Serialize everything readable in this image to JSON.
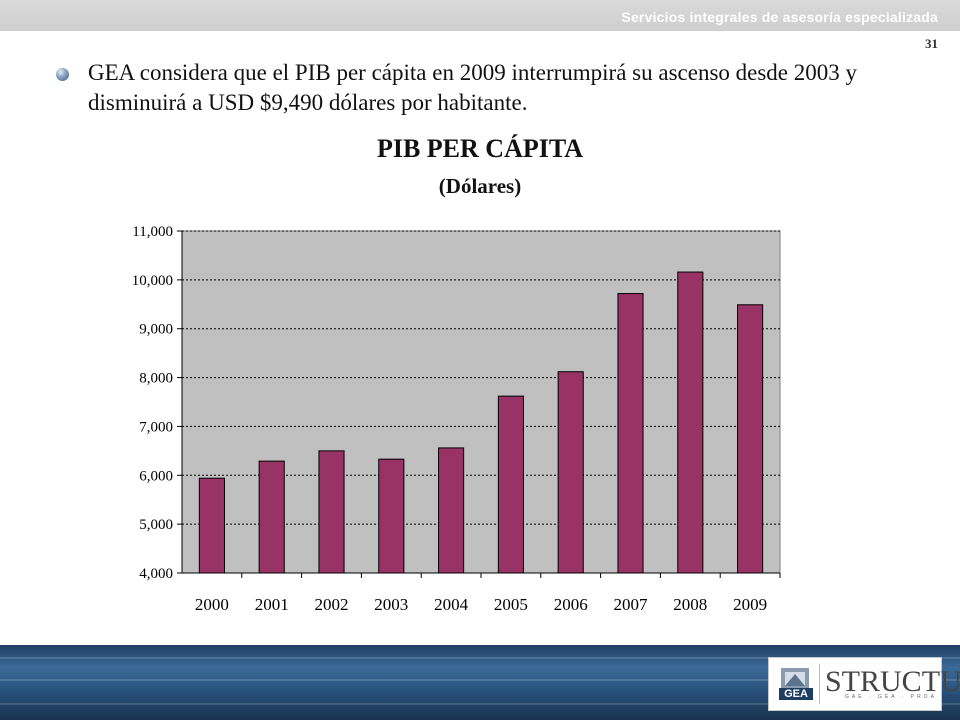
{
  "header": {
    "tagline": "Servicios integrales de asesoría especializada",
    "page_number": "31"
  },
  "bullet": {
    "text": "GEA considera que el PIB per cápita en 2009 interrumpirá su ascenso desde 2003 y disminuirá a USD $9,490 dólares por habitante."
  },
  "chart_data": {
    "type": "bar",
    "title": "PIB PER CÁPITA",
    "subtitle": "(Dólares)",
    "categories": [
      "2000",
      "2001",
      "2002",
      "2003",
      "2004",
      "2005",
      "2006",
      "2007",
      "2008",
      "2009"
    ],
    "values": [
      5940,
      6290,
      6500,
      6330,
      6560,
      7620,
      8120,
      9720,
      10160,
      9490
    ],
    "ylim": [
      4000,
      11000
    ],
    "yticks": [
      4000,
      5000,
      6000,
      7000,
      8000,
      9000,
      10000,
      11000
    ],
    "ytick_labels": [
      "4,000",
      "5,000",
      "6,000",
      "7,000",
      "8,000",
      "9,000",
      "10,000",
      "11,000"
    ],
    "grid": true,
    "bar_color": "#993366",
    "plot_background": "#c0c0c0"
  },
  "footer": {
    "logo_left": "GEA",
    "logo_right": "STRUCTURA",
    "logo_sub": "GAE · GEA · PROA"
  }
}
